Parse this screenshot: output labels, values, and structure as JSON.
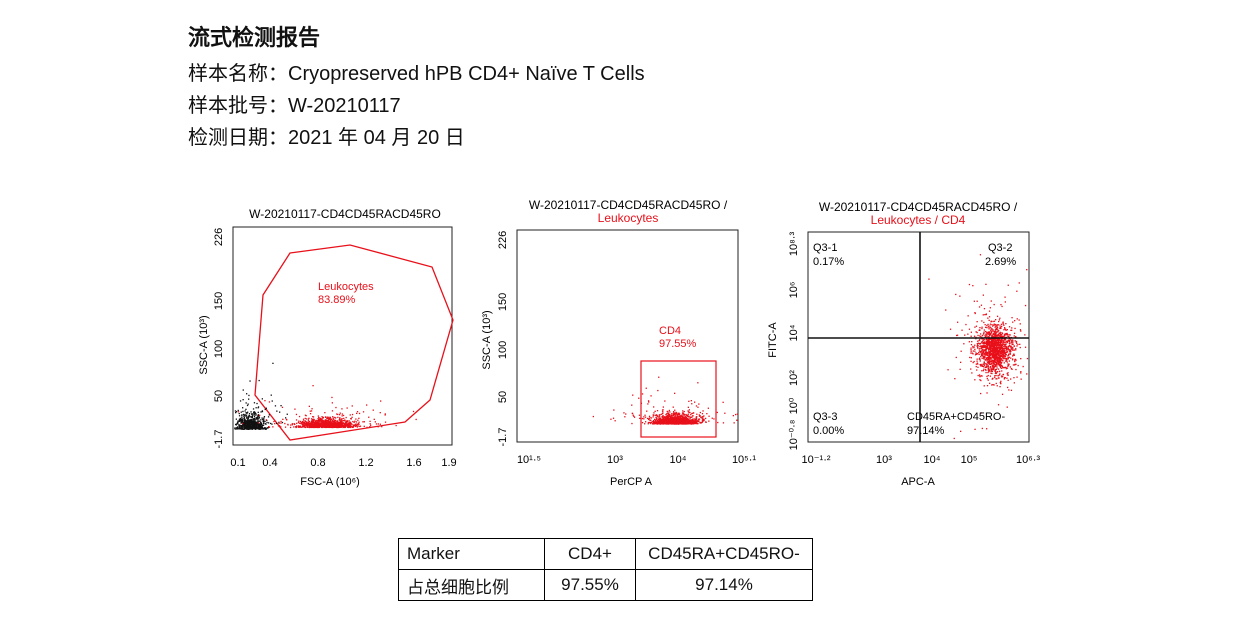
{
  "report": {
    "title": "流式检测报告",
    "sample_name_label": "样本名称：",
    "sample_name": "Cryopreserved hPB CD4+ Naïve T Cells",
    "batch_label": "样本批号：",
    "batch": "W-20210117",
    "date_label": "检测日期：",
    "date": "2021 年 04 月 20 日"
  },
  "colors": {
    "gate": "#e8101a",
    "dots_black": "#111111",
    "axis": "#222222"
  },
  "chart_data": [
    {
      "type": "scatter",
      "title": "W-20210117-CD4CD45RACD45RO",
      "xlabel": "FSC-A",
      "xlabel_unit": "(10⁶)",
      "ylabel": "SSC-A (10³)",
      "xlim": [
        0.1,
        1.9
      ],
      "ylim": [
        -1.7,
        226
      ],
      "xticks": [
        "0.1",
        "0.4",
        "0.8",
        "1.2",
        "1.6",
        "1.9"
      ],
      "yticks": [
        "-1.7",
        "50",
        "100",
        "150",
        "226"
      ],
      "gate": {
        "name": "Leukocytes",
        "percent": "83.89%"
      },
      "clusters": [
        {
          "name": "ungated",
          "color": "black",
          "center": [
            0.2,
            10
          ],
          "spread": [
            0.06,
            10
          ],
          "n": 700
        },
        {
          "name": "leukocytes",
          "color": "red",
          "center": [
            0.85,
            12
          ],
          "spread": [
            0.11,
            5
          ],
          "n": 1300
        }
      ]
    },
    {
      "type": "scatter",
      "title": "W-20210117-CD4CD45RACD45RO /",
      "subtitle": "Leukocytes",
      "xlabel": "PerCP A",
      "ylabel": "SSC-A (10³)",
      "xscale": "log",
      "xticks": [
        "10¹·⁵",
        "10³",
        "10⁴",
        "10⁵·¹"
      ],
      "yticks": [
        "-1.7",
        "50",
        "100",
        "150",
        "226"
      ],
      "ylim": [
        -1.7,
        226
      ],
      "gate": {
        "name": "CD4",
        "percent": "97.55%"
      },
      "clusters": [
        {
          "name": "CD4",
          "color": "red",
          "center": [
            3.95,
            14
          ],
          "spread": [
            0.18,
            6
          ],
          "n": 1300
        }
      ]
    },
    {
      "type": "scatter",
      "title": "W-20210117-CD4CD45RACD45RO /",
      "subtitle": "Leukocytes / CD4",
      "xlabel": "APC-A",
      "ylabel": "FITC-A",
      "xscale": "log",
      "yscale": "log",
      "xticks": [
        "10⁻¹·²",
        "10³",
        "10⁴",
        "10⁵",
        "10⁶·³"
      ],
      "yticks": [
        "10⁻⁰·⁸",
        "10⁰",
        "10²",
        "10⁴",
        "10⁶",
        "10⁸·³"
      ],
      "quadrants": [
        {
          "name": "Q3-1",
          "percent": "0.17%"
        },
        {
          "name": "Q3-2",
          "percent": "2.69%"
        },
        {
          "name": "Q3-3",
          "percent": "0.00%"
        },
        {
          "name": "CD45RA+CD45RO-",
          "percent": "97.14%"
        }
      ],
      "clusters": [
        {
          "name": "CD45RA+CD45RO-",
          "color": "red",
          "center": [
            5.1,
            3.3
          ],
          "spread": [
            0.3,
            0.7
          ],
          "n": 1500
        }
      ]
    }
  ],
  "table": {
    "headers": [
      "Marker",
      "CD4+",
      "CD45RA+CD45RO-"
    ],
    "row_label": "占总细胞比例",
    "values": [
      "97.55%",
      "97.14%"
    ]
  }
}
